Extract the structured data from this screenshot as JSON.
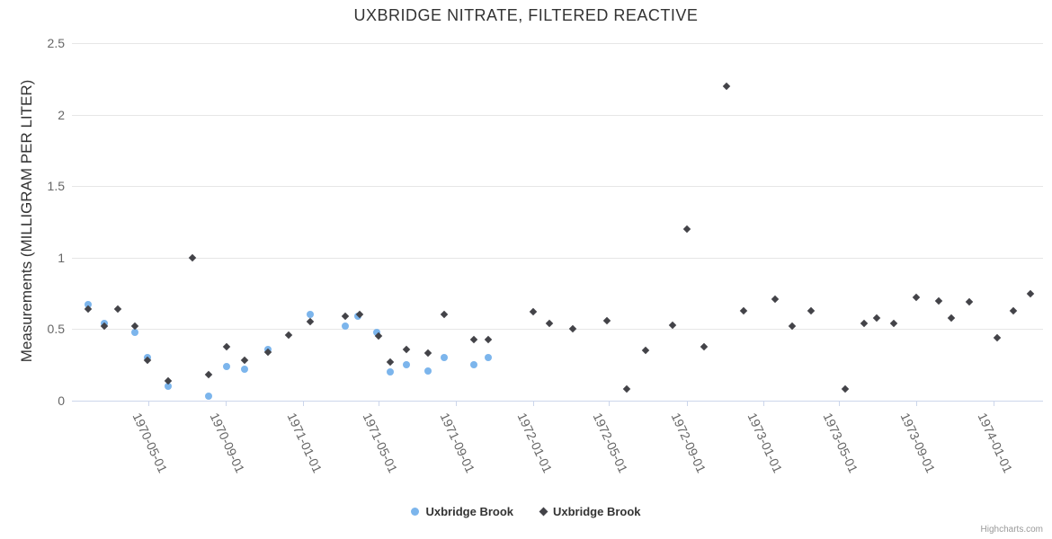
{
  "chart_data": {
    "type": "scatter",
    "title": "UXBRIDGE NITRATE, FILTERED REACTIVE",
    "ylabel": "Measurements (MILLIGRAM PER LITER)",
    "xlabel": "",
    "ylim": [
      0,
      2.5
    ],
    "yticks": [
      "0",
      "0.5",
      "1",
      "1.5",
      "2",
      "2.5"
    ],
    "ytick_values": [
      0,
      0.5,
      1,
      1.5,
      2,
      2.5
    ],
    "xticks": [
      "1970-05-01",
      "1970-09-01",
      "1971-01-01",
      "1971-05-01",
      "1971-09-01",
      "1972-01-01",
      "1972-05-01",
      "1972-09-01",
      "1973-01-01",
      "1973-05-01",
      "1973-09-01",
      "1974-01-01"
    ],
    "grid": "horizontal-only",
    "legend_position": "bottom-center",
    "credits": "Highcharts.com",
    "colors": {
      "series_blue": "#7cb5ec",
      "series_dark": "#434348",
      "gridline": "#e6e6e6",
      "axis_line": "#ccd6eb",
      "title_text": "#333333",
      "tick_labels": "#666666",
      "credits_text": "#999999"
    },
    "series": [
      {
        "name": "Uxbridge Brook",
        "marker": "circle",
        "color": "#7cb5ec",
        "points": [
          [
            "1970-01-25",
            0.67
          ],
          [
            "1970-02-20",
            0.54
          ],
          [
            "1970-04-10",
            0.48
          ],
          [
            "1970-04-29",
            0.3
          ],
          [
            "1970-06-02",
            0.1
          ],
          [
            "1970-08-04",
            0.03
          ],
          [
            "1970-09-02",
            0.24
          ],
          [
            "1970-10-01",
            0.22
          ],
          [
            "1970-11-07",
            0.36
          ],
          [
            "1971-01-13",
            0.6
          ],
          [
            "1971-03-09",
            0.52
          ],
          [
            "1971-03-29",
            0.59
          ],
          [
            "1971-04-29",
            0.48
          ],
          [
            "1971-05-20",
            0.2
          ],
          [
            "1971-06-15",
            0.25
          ],
          [
            "1971-07-18",
            0.21
          ],
          [
            "1971-08-13",
            0.3
          ],
          [
            "1971-09-29",
            0.25
          ],
          [
            "1971-10-22",
            0.3
          ]
        ]
      },
      {
        "name": "Uxbridge Brook",
        "marker": "diamond",
        "color": "#434348",
        "points": [
          [
            "1970-01-25",
            0.64
          ],
          [
            "1970-02-20",
            0.52
          ],
          [
            "1970-03-13",
            0.64
          ],
          [
            "1970-04-10",
            0.52
          ],
          [
            "1970-04-29",
            0.28
          ],
          [
            "1970-06-02",
            0.14
          ],
          [
            "1970-07-10",
            1.0
          ],
          [
            "1970-08-04",
            0.18
          ],
          [
            "1970-09-02",
            0.38
          ],
          [
            "1970-10-01",
            0.28
          ],
          [
            "1970-11-07",
            0.34
          ],
          [
            "1970-12-10",
            0.46
          ],
          [
            "1971-01-13",
            0.55
          ],
          [
            "1971-03-09",
            0.59
          ],
          [
            "1971-04-01",
            0.6
          ],
          [
            "1971-05-01",
            0.45
          ],
          [
            "1971-05-20",
            0.27
          ],
          [
            "1971-06-15",
            0.36
          ],
          [
            "1971-07-18",
            0.33
          ],
          [
            "1971-08-13",
            0.6
          ],
          [
            "1971-09-29",
            0.43
          ],
          [
            "1971-10-22",
            0.43
          ],
          [
            "1972-01-01",
            0.62
          ],
          [
            "1972-01-27",
            0.54
          ],
          [
            "1972-03-04",
            0.5
          ],
          [
            "1972-04-27",
            0.56
          ],
          [
            "1972-05-29",
            0.08
          ],
          [
            "1972-06-28",
            0.35
          ],
          [
            "1972-08-09",
            0.53
          ],
          [
            "1972-09-01",
            1.2
          ],
          [
            "1972-09-29",
            0.38
          ],
          [
            "1972-11-04",
            2.2
          ],
          [
            "1972-12-01",
            0.63
          ],
          [
            "1973-01-19",
            0.71
          ],
          [
            "1973-02-16",
            0.52
          ],
          [
            "1973-03-17",
            0.63
          ],
          [
            "1973-05-10",
            0.08
          ],
          [
            "1973-06-09",
            0.54
          ],
          [
            "1973-06-29",
            0.58
          ],
          [
            "1973-07-27",
            0.54
          ],
          [
            "1973-09-01",
            0.72
          ],
          [
            "1973-10-06",
            0.7
          ],
          [
            "1973-10-26",
            0.58
          ],
          [
            "1973-11-24",
            0.69
          ],
          [
            "1974-01-06",
            0.44
          ],
          [
            "1974-02-02",
            0.63
          ],
          [
            "1974-03-01",
            0.75
          ]
        ]
      }
    ]
  }
}
